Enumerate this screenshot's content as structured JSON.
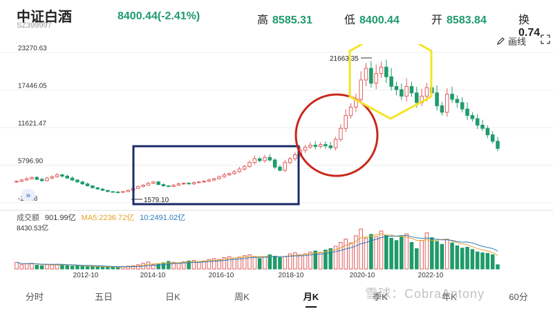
{
  "header": {
    "title": "中证白酒",
    "code": "SZ399997",
    "price_change": "8400.44(-2.41%)",
    "high_label": "高",
    "high_value": "8585.31",
    "low_label": "低",
    "low_value": "8400.44",
    "open_label": "开",
    "open_value": "8583.84",
    "turnover_label": "换",
    "turnover_value": "0.74"
  },
  "toolbar": {
    "draw_label": "画线",
    "draw_icon": "pencil-icon",
    "expand_icon": "fullscreen-icon",
    "expand_left_label": "»"
  },
  "colors": {
    "up": "#e05b5b",
    "down": "#1f9b6a",
    "ma5": "#e1a32a",
    "ma10": "#2a7ab8",
    "box": "#1a2a6b",
    "circle": "#c8261b",
    "hexagon": "#f2e526"
  },
  "volume": {
    "name": "成交额",
    "value": "901.99亿",
    "ma5_label": "MA5:2236.72亿",
    "ma10_label": "10:2491.02亿",
    "max_label": "8430.53亿"
  },
  "chart_data": {
    "type": "candlestick",
    "y_ticks": [
      "23270.63",
      "17446.05",
      "11621.47",
      "5796.90",
      "-27.68"
    ],
    "y_tick_values": [
      23270.63,
      17446.05,
      11621.47,
      5796.9,
      -27.68
    ],
    "ylim": [
      -27.68,
      23270.63
    ],
    "x_ticks": [
      "2012-10",
      "2014-10",
      "2016-10",
      "2018-10",
      "2020-10",
      "2022-10"
    ],
    "annotations": [
      {
        "text": "21663.35",
        "type": "high"
      },
      {
        "text": "1579.10",
        "type": "low"
      }
    ],
    "trend_closes": [
      3300,
      3500,
      3700,
      3900,
      3600,
      3400,
      3800,
      4000,
      4300,
      4100,
      3800,
      3500,
      3200,
      2900,
      2600,
      2300,
      2100,
      1900,
      1700,
      1650,
      1600,
      1700,
      1900,
      2200,
      2500,
      2700,
      3000,
      3200,
      2800,
      2600,
      2500,
      2700,
      2900,
      3000,
      2900,
      3100,
      3200,
      3300,
      3500,
      3700,
      4000,
      4300,
      4500,
      4800,
      5200,
      5600,
      6200,
      6800,
      6500,
      7000,
      6600,
      5500,
      5000,
      6200,
      6800,
      7400,
      8100,
      8600,
      8900,
      8700,
      9000,
      8800,
      8500,
      9800,
      11500,
      13500,
      14800,
      16000,
      19000,
      20800,
      18500,
      20000,
      21000,
      19500,
      18000,
      17500,
      16500,
      18000,
      17000,
      15500,
      16500,
      17800,
      17000,
      15000,
      14000,
      16800,
      16000,
      15500,
      14500,
      13500,
      13000,
      12000,
      11500,
      10500,
      9500,
      8400
    ],
    "volume_series": [
      1400,
      900,
      1100,
      1200,
      800,
      700,
      900,
      850,
      1000,
      950,
      700,
      600,
      650,
      600,
      550,
      500,
      450,
      420,
      400,
      380,
      420,
      500,
      600,
      700,
      900,
      1200,
      1500,
      900,
      1100,
      1300,
      1600,
      1400,
      1200,
      1500,
      1700,
      1800,
      1500,
      1700,
      2000,
      2200,
      2000,
      2400,
      2600,
      2300,
      2500,
      2800,
      3000,
      2600,
      2200,
      2500,
      3000,
      2700,
      2400,
      2600,
      3200,
      3400,
      3000,
      3200,
      3600,
      3800,
      3500,
      4000,
      4300,
      4800,
      5600,
      6300,
      5500,
      7000,
      8430,
      6500,
      7300,
      6800,
      8000,
      7100,
      6500,
      6000,
      6800,
      7400,
      5600,
      4300,
      6000,
      7600,
      6600,
      5800,
      5200,
      6300,
      5500,
      4900,
      4400,
      4600,
      4100,
      3600,
      3400,
      3300,
      3000,
      900
    ],
    "volume_max": 8430.53
  }
}
